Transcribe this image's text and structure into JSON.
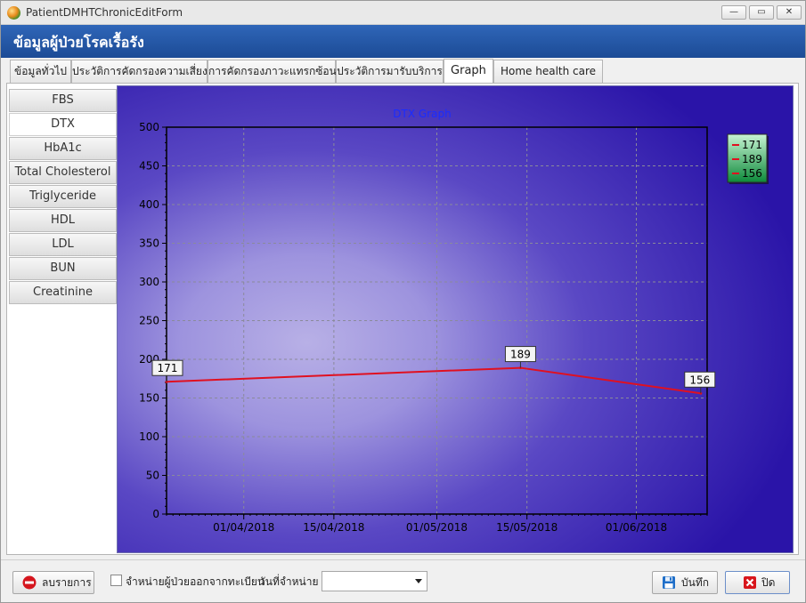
{
  "window": {
    "title": "PatientDMHTChronicEditForm",
    "controls": [
      "—",
      "▭",
      "✕"
    ]
  },
  "header": {
    "title": "ข้อมูลผู้ป่วยโรคเรื้อรัง"
  },
  "tabs": [
    {
      "label": "ข้อมูลทั่วไป"
    },
    {
      "label": "ประวัติการคัดกรองความเสี่ยง"
    },
    {
      "label": "การคัดกรองภาวะแทรกซ้อน"
    },
    {
      "label": "ประวัติการมารับบริการ"
    },
    {
      "label": "Graph",
      "active": true
    },
    {
      "label": "Home health care"
    }
  ],
  "sidebar": {
    "items": [
      {
        "label": "FBS"
      },
      {
        "label": "DTX",
        "active": true
      },
      {
        "label": "HbA1c"
      },
      {
        "label": "Total Cholesterol"
      },
      {
        "label": "Triglyceride"
      },
      {
        "label": "HDL"
      },
      {
        "label": "LDL"
      },
      {
        "label": "BUN"
      },
      {
        "label": "Creatinine"
      }
    ]
  },
  "chart_data": {
    "type": "line",
    "title": "DTX Graph",
    "x": [
      "2018-03-20",
      "2018-05-14",
      "2018-06-11"
    ],
    "series": [
      {
        "values": [
          171,
          189,
          156
        ],
        "color": "#e01020"
      }
    ],
    "data_labels": [
      "171",
      "189",
      "156"
    ],
    "legend": {
      "entries": [
        "171",
        "189",
        "156"
      ],
      "placement": "top-right"
    },
    "xticks": [
      "01/04/2018",
      "15/04/2018",
      "01/05/2018",
      "15/05/2018",
      "01/06/2018"
    ],
    "xtick_dates": [
      "2018-04-01",
      "2018-04-15",
      "2018-05-01",
      "2018-05-15",
      "2018-06-01"
    ],
    "xlim": [
      "2018-03-20",
      "2018-06-12"
    ],
    "ylim": [
      0,
      500
    ],
    "yticks": [
      0,
      50,
      100,
      150,
      200,
      250,
      300,
      350,
      400,
      450,
      500
    ],
    "grid": true
  },
  "footer": {
    "delete_button": "ลบรายการ",
    "discharge_checkbox_label": "จำหน่ายผู้ป่วยออกจากทะเบียน",
    "discharge_date_label": "วันที่จำหน่าย",
    "discharge_date_value": "",
    "save_button": "บันทึก",
    "close_button": "ปิด"
  }
}
